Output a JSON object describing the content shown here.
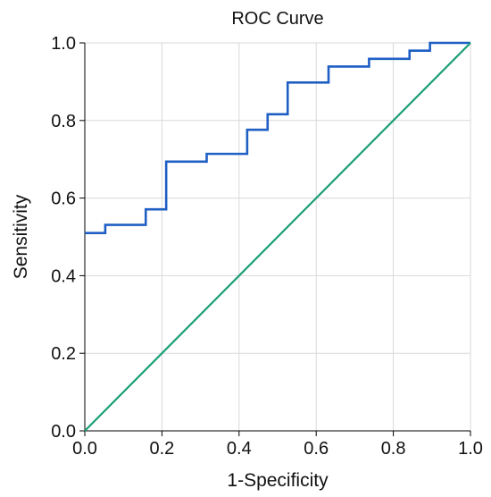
{
  "chart_data": {
    "type": "line",
    "title": "ROC Curve",
    "xlabel": "1-Specificity",
    "ylabel": "Sensitivity",
    "xlim": [
      0.0,
      1.0
    ],
    "ylim": [
      0.0,
      1.0
    ],
    "xticks": [
      "0.0",
      "0.2",
      "0.4",
      "0.6",
      "0.8",
      "1.0"
    ],
    "yticks": [
      "0.0",
      "0.2",
      "0.4",
      "0.6",
      "0.8",
      "1.0"
    ],
    "grid": true,
    "legend": "none",
    "series": [
      {
        "style": "step",
        "color": "#1f5fc4",
        "points": [
          [
            0.0,
            0.51
          ],
          [
            0.053,
            0.51
          ],
          [
            0.053,
            0.531
          ],
          [
            0.158,
            0.531
          ],
          [
            0.158,
            0.571
          ],
          [
            0.211,
            0.571
          ],
          [
            0.211,
            0.694
          ],
          [
            0.316,
            0.694
          ],
          [
            0.316,
            0.714
          ],
          [
            0.421,
            0.714
          ],
          [
            0.421,
            0.776
          ],
          [
            0.474,
            0.776
          ],
          [
            0.474,
            0.816
          ],
          [
            0.526,
            0.816
          ],
          [
            0.526,
            0.898
          ],
          [
            0.632,
            0.898
          ],
          [
            0.632,
            0.939
          ],
          [
            0.737,
            0.939
          ],
          [
            0.737,
            0.959
          ],
          [
            0.842,
            0.959
          ],
          [
            0.842,
            0.98
          ],
          [
            0.895,
            0.98
          ],
          [
            0.895,
            1.0
          ],
          [
            1.0,
            1.0
          ]
        ]
      },
      {
        "style": "line",
        "color": "#1a9e77",
        "points": [
          [
            0.0,
            0.0
          ],
          [
            1.0,
            1.0
          ]
        ]
      }
    ]
  }
}
